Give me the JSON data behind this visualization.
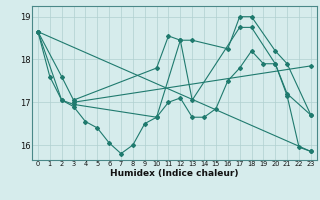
{
  "xlabel": "Humidex (Indice chaleur)",
  "xlim": [
    -0.5,
    23.5
  ],
  "ylim": [
    15.65,
    19.25
  ],
  "yticks": [
    16,
    17,
    18,
    19
  ],
  "xticks": [
    0,
    1,
    2,
    3,
    4,
    5,
    6,
    7,
    8,
    9,
    10,
    11,
    12,
    13,
    14,
    15,
    16,
    17,
    18,
    19,
    20,
    21,
    22,
    23
  ],
  "bg_color": "#d6ecec",
  "line_color": "#1f7a6e",
  "grid_color": "#b0d0d0",
  "series": [
    {
      "x": [
        0,
        1,
        2,
        3,
        4,
        5,
        6,
        7,
        8,
        9,
        10,
        11,
        12,
        13,
        14,
        15,
        16,
        17,
        18,
        19,
        20,
        21,
        22,
        23
      ],
      "y": [
        18.65,
        17.6,
        17.05,
        16.9,
        16.55,
        16.4,
        16.05,
        15.8,
        16.0,
        16.5,
        16.65,
        17.0,
        17.1,
        16.65,
        16.65,
        16.85,
        17.5,
        17.8,
        18.2,
        17.9,
        17.9,
        17.15,
        15.95,
        15.85
      ]
    },
    {
      "x": [
        0,
        2,
        3,
        10,
        11,
        12,
        13,
        17,
        18,
        20,
        21,
        23
      ],
      "y": [
        18.65,
        17.6,
        17.05,
        17.8,
        18.55,
        18.45,
        17.05,
        18.75,
        18.75,
        17.9,
        17.2,
        16.7
      ]
    },
    {
      "x": [
        0,
        2,
        3,
        10,
        12,
        13,
        16,
        17,
        18,
        20,
        21,
        23
      ],
      "y": [
        18.65,
        17.05,
        16.95,
        16.65,
        18.45,
        18.45,
        18.25,
        19.0,
        19.0,
        18.2,
        17.9,
        16.7
      ]
    },
    {
      "x": [
        0,
        23
      ],
      "y": [
        18.65,
        15.85
      ]
    },
    {
      "x": [
        3,
        23
      ],
      "y": [
        17.0,
        17.85
      ]
    }
  ]
}
